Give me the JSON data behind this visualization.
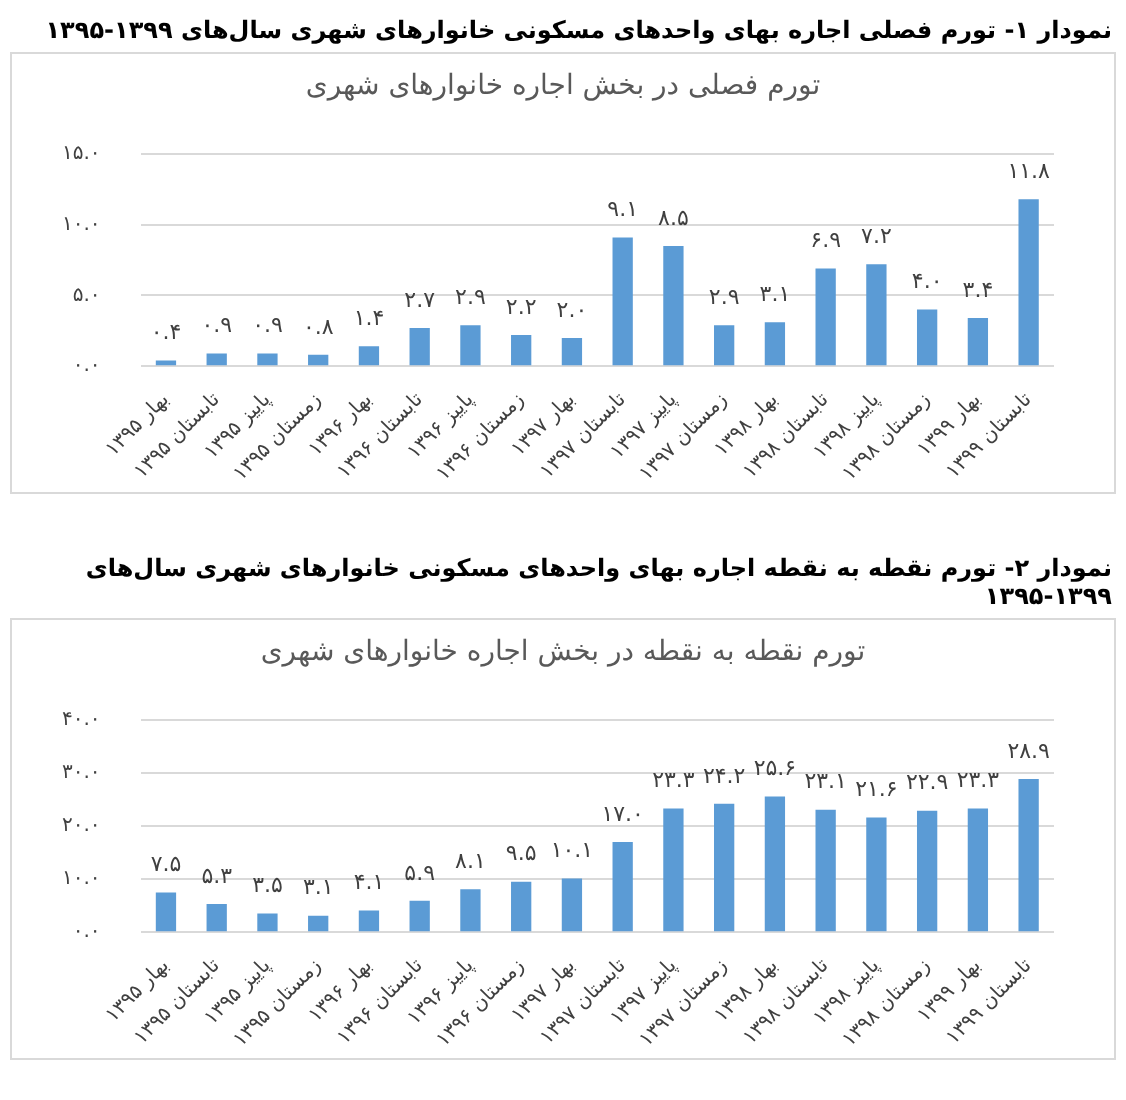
{
  "chart_data": [
    {
      "type": "bar",
      "title": "نمودار ۱- تورم فصلی اجاره بهای واحدهای مسکونی خانوارهای شهری سال‌های ۱۳۹۹-۱۳۹۵",
      "subtitle": "تورم فصلی در بخش اجاره خانوارهای شهری",
      "categories": [
        "بهار ۱۳۹۵",
        "تابستان ۱۳۹۵",
        "پاییز ۱۳۹۵",
        "زمستان ۱۳۹۵",
        "بهار ۱۳۹۶",
        "تابستان ۱۳۹۶",
        "پاییز ۱۳۹۶",
        "زمستان ۱۳۹۶",
        "بهار ۱۳۹۷",
        "تابستان ۱۳۹۷",
        "پاییز ۱۳۹۷",
        "زمستان ۱۳۹۷",
        "بهار ۱۳۹۸",
        "تابستان ۱۳۹۸",
        "پاییز ۱۳۹۸",
        "زمستان ۱۳۹۸",
        "بهار ۱۳۹۹",
        "تابستان ۱۳۹۹"
      ],
      "values": [
        0.4,
        0.9,
        0.9,
        0.8,
        1.4,
        2.7,
        2.9,
        2.2,
        2.0,
        9.1,
        8.5,
        2.9,
        3.1,
        6.9,
        7.2,
        4.0,
        3.4,
        11.8
      ],
      "value_labels": [
        "۰.۴",
        "۰.۹",
        "۰.۹",
        "۰.۸",
        "۱.۴",
        "۲.۷",
        "۲.۹",
        "۲.۲",
        "۲.۰",
        "۹.۱",
        "۸.۵",
        "۲.۹",
        "۳.۱",
        "۶.۹",
        "۷.۲",
        "۴.۰",
        "۳.۴",
        "۱۱.۸"
      ],
      "color": "#5b9bd5",
      "ylim": [
        0,
        15
      ],
      "yticks": [
        {
          "value": 0,
          "label": "۰.۰"
        },
        {
          "value": 5,
          "label": "۵.۰"
        },
        {
          "value": 10,
          "label": "۱۰.۰"
        },
        {
          "value": 15,
          "label": "۱۵.۰"
        }
      ],
      "grid": "y",
      "legend": false
    },
    {
      "type": "bar",
      "title": "نمودار ۲- تورم نقطه به نقطه اجاره بهای واحدهای مسکونی خانوارهای شهری سال‌های ۱۳۹۹-۱۳۹۵",
      "subtitle": "تورم نقطه به نقطه در بخش اجاره خانوارهای شهری",
      "categories": [
        "بهار ۱۳۹۵",
        "تابستان ۱۳۹۵",
        "پاییز ۱۳۹۵",
        "زمستان ۱۳۹۵",
        "بهار ۱۳۹۶",
        "تابستان ۱۳۹۶",
        "پاییز ۱۳۹۶",
        "زمستان ۱۳۹۶",
        "بهار ۱۳۹۷",
        "تابستان ۱۳۹۷",
        "پاییز ۱۳۹۷",
        "زمستان ۱۳۹۷",
        "بهار ۱۳۹۸",
        "تابستان ۱۳۹۸",
        "پاییز ۱۳۹۸",
        "زمستان ۱۳۹۸",
        "بهار ۱۳۹۹",
        "تابستان ۱۳۹۹"
      ],
      "values": [
        7.5,
        5.3,
        3.5,
        3.1,
        4.1,
        5.9,
        8.1,
        9.5,
        10.1,
        17.0,
        23.3,
        24.2,
        25.6,
        23.1,
        21.6,
        22.9,
        23.3,
        28.9
      ],
      "value_labels": [
        "۷.۵",
        "۵.۳",
        "۳.۵",
        "۳.۱",
        "۴.۱",
        "۵.۹",
        "۸.۱",
        "۹.۵",
        "۱۰.۱",
        "۱۷.۰",
        "۲۳.۳",
        "۲۴.۲",
        "۲۵.۶",
        "۲۳.۱",
        "۲۱.۶",
        "۲۲.۹",
        "۲۳.۳",
        "۲۸.۹"
      ],
      "color": "#5b9bd5",
      "ylim": [
        0,
        40
      ],
      "yticks": [
        {
          "value": 0,
          "label": "۰.۰"
        },
        {
          "value": 10,
          "label": "۱۰.۰"
        },
        {
          "value": 20,
          "label": "۲۰.۰"
        },
        {
          "value": 30,
          "label": "۳۰.۰"
        },
        {
          "value": 40,
          "label": "۴۰.۰"
        }
      ],
      "grid": "y",
      "legend": false
    }
  ]
}
